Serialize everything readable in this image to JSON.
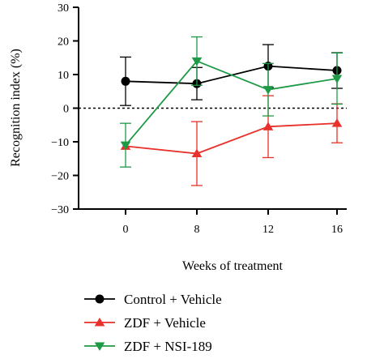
{
  "chart_data": {
    "type": "line",
    "title": "",
    "xlabel": "Weeks of treatment",
    "ylabel": "Recognition index (%)",
    "x": [
      0,
      8,
      12,
      16
    ],
    "x_tick_labels": [
      "0",
      "8",
      "12",
      "16"
    ],
    "ylim": [
      -30,
      30
    ],
    "y_ticks": [
      30,
      20,
      10,
      0,
      -10,
      -20,
      -30
    ],
    "y_tick_labels": [
      "30",
      "20",
      "10",
      "0",
      "−10",
      "−20",
      "−30"
    ],
    "reference_line": {
      "y": 0,
      "style": "dotted"
    },
    "grid": false,
    "legend_position": "bottom-left",
    "series": [
      {
        "name": "Control + Vehicle",
        "color": "#000000",
        "marker": "circle",
        "values": [
          8,
          7.3,
          12.5,
          11.2
        ],
        "error": [
          7.2,
          4.8,
          6.4,
          5.3
        ]
      },
      {
        "name": "ZDF + Vehicle",
        "color": "#e8312a",
        "marker": "triangle-up",
        "values": [
          -11.3,
          -13.5,
          -5.5,
          -4.5
        ],
        "error": [
          0,
          9.5,
          9.2,
          5.8
        ]
      },
      {
        "name": "ZDF + NSI-189",
        "color": "#1e9a46",
        "marker": "triangle-down",
        "values": [
          -11,
          14,
          5.5,
          8.8
        ],
        "error": [
          6.5,
          7.2,
          7.8,
          7.6
        ]
      }
    ]
  }
}
